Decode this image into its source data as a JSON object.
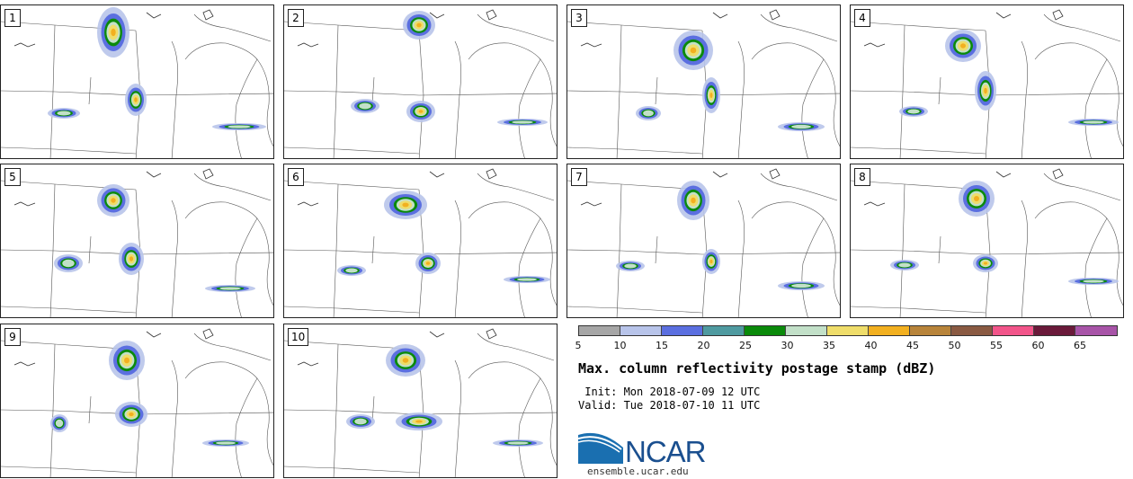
{
  "panels": [
    {
      "label": "1"
    },
    {
      "label": "2"
    },
    {
      "label": "3"
    },
    {
      "label": "4"
    },
    {
      "label": "5"
    },
    {
      "label": "6"
    },
    {
      "label": "7"
    },
    {
      "label": "8"
    },
    {
      "label": "9"
    },
    {
      "label": "10"
    }
  ],
  "colorbar": {
    "colors": [
      "#a6a6a6",
      "#b8c4ea",
      "#5b6fe0",
      "#4f9aa0",
      "#0a8a0a",
      "#c2e0c8",
      "#efdd6a",
      "#f2b020",
      "#b8843a",
      "#8a5a42",
      "#f2558a",
      "#6a1a3a",
      "#a854a8"
    ],
    "labels": [
      "5",
      "10",
      "15",
      "20",
      "25",
      "30",
      "35",
      "40",
      "45",
      "50",
      "55",
      "60",
      "65"
    ]
  },
  "title": "Max. column reflectivity postage stamp (dBZ)",
  "init": " Init: Mon 2018-07-09 12 UTC",
  "valid": "Valid: Tue 2018-07-10 11 UTC",
  "logo": {
    "name": "NCAR",
    "url": "ensemble.ucar.edu"
  }
}
